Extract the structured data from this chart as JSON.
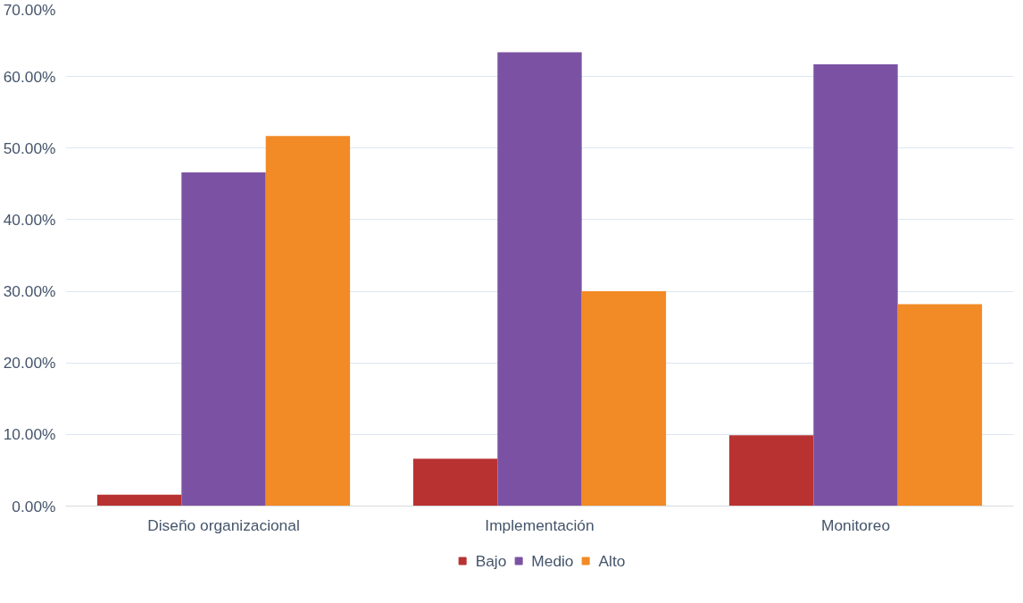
{
  "chart_data": {
    "type": "bar",
    "categories": [
      "Diseño organizacional",
      "Implementación",
      "Monitoreo"
    ],
    "series": [
      {
        "name": "Bajo",
        "color": "#b83232",
        "values": [
          1.6,
          6.6,
          9.9
        ]
      },
      {
        "name": "Medio",
        "color": "#7b52a3",
        "values": [
          46.6,
          63.4,
          61.7
        ]
      },
      {
        "name": "Alto",
        "color": "#f28a25",
        "values": [
          51.7,
          30.0,
          28.2
        ]
      }
    ],
    "ylim": [
      0,
      70
    ],
    "yticks": [
      {
        "value": 0,
        "label": "0.00%"
      },
      {
        "value": 10,
        "label": "10.00%"
      },
      {
        "value": 20,
        "label": "20.00%"
      },
      {
        "value": 30,
        "label": "30.00%"
      },
      {
        "value": 40,
        "label": "40.00%"
      },
      {
        "value": 50,
        "label": "50.00%"
      },
      {
        "value": 60,
        "label": "60.00%"
      },
      {
        "value": 70,
        "label": "70.00%"
      }
    ],
    "grid": "y",
    "legend": "bottom"
  }
}
